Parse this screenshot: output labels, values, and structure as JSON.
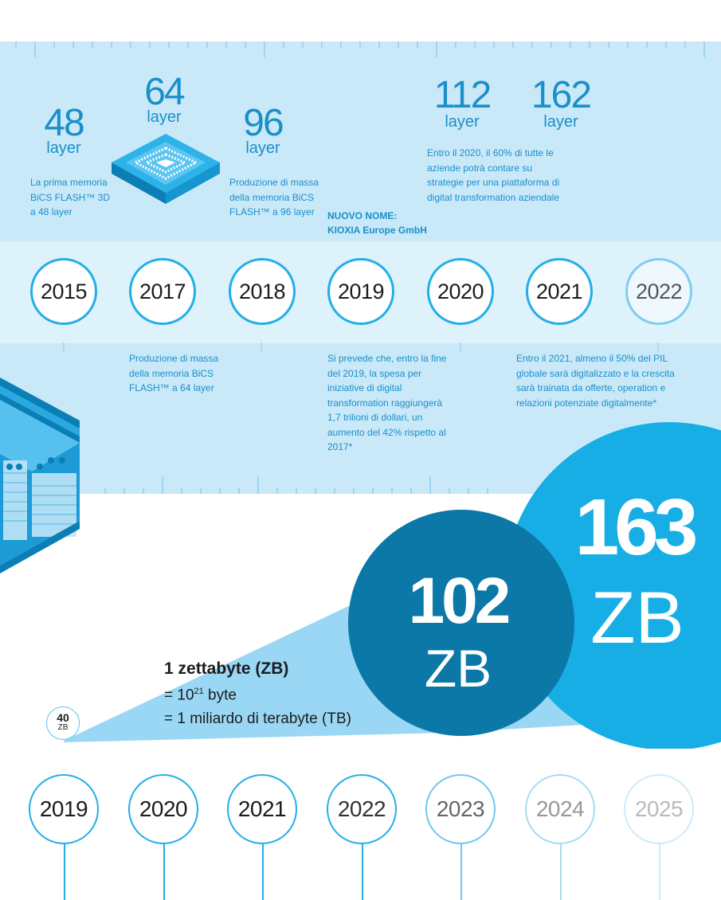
{
  "milestones": {
    "m48": {
      "num": "48",
      "unit": "layer"
    },
    "m64": {
      "num": "64",
      "unit": "layer"
    },
    "m96": {
      "num": "96",
      "unit": "layer"
    },
    "m112": {
      "num": "112",
      "unit": "layer"
    },
    "m162": {
      "num": "162",
      "unit": "layer"
    }
  },
  "notes": {
    "first_bics": "La prima memoria BiCS FLASH™ 3D a 48 layer",
    "mass96": "Produzione di massa della memoria BiCS FLASH™ a 96 layer",
    "newname_title": "NUOVO NOME:",
    "newname_body": "KIOXIA Europe GmbH",
    "dt2020": "Entro il 2020, il 60% di tutte le aziende potrà contare su strategie per una piattaforma di digital transformation aziendale",
    "mass64": "Produzione di massa della memoria BiCS FLASH™ a 64 layer",
    "dt2019": "Si prevede che, entro la fine del 2019, la spesa per iniziative di digital transformation raggiungerà 1,7 trilioni di dollari, un aumento del 42% rispetto al 2017*",
    "pil2021": "Entro il 2021, almeno il 50% del PIL globale sarà digitalizzato e la crescita sarà trainata da offerte, operation e relazioni potenziate digitalmente*"
  },
  "timeline_top": [
    "2015",
    "2017",
    "2018",
    "2019",
    "2020",
    "2021",
    "2022"
  ],
  "timeline_bottom": [
    "2019",
    "2020",
    "2021",
    "2022",
    "2023",
    "2024",
    "2025"
  ],
  "zettabyte": {
    "title": "1 zettabyte (ZB)",
    "line1_prefix": "= 10",
    "line1_sup": "21",
    "line1_suffix": " byte",
    "line2": "= 1 miliardo di terabyte (TB)"
  },
  "growth": {
    "start_value": "40",
    "start_unit": "ZB",
    "mid_value": "102",
    "mid_unit": "ZB",
    "end_value": "163",
    "end_unit": "ZB"
  },
  "colors": {
    "band": "#c9e9f8",
    "timeline_band": "#def2fb",
    "accent": "#22aee8",
    "text_blue": "#1a8fca",
    "circle_mid": "#0b78a8",
    "circle_big": "#17aee6",
    "cone": "#9ad7f4"
  }
}
